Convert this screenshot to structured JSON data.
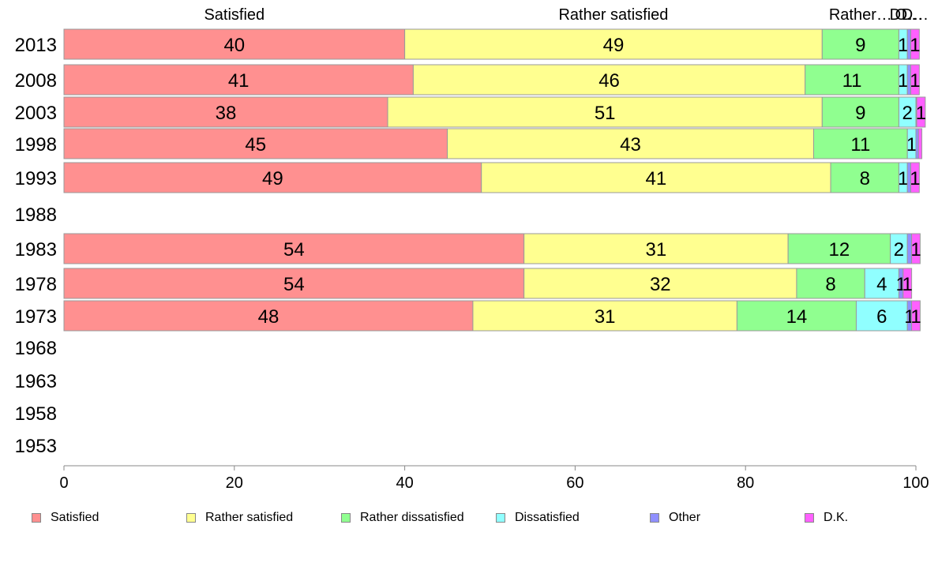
{
  "chart_data": {
    "type": "bar",
    "orientation": "horizontal",
    "stacked": true,
    "categories": [
      "2013",
      "2008",
      "2003",
      "1998",
      "1993",
      "1988",
      "1983",
      "1978",
      "1973",
      "1968",
      "1963",
      "1958",
      "1953"
    ],
    "series": [
      {
        "name": "Satisfied",
        "color": "#ff9090",
        "values": [
          40,
          41,
          38,
          45,
          49,
          null,
          54,
          54,
          48,
          null,
          null,
          null,
          null
        ]
      },
      {
        "name": "Rather satisfied",
        "color": "#ffff90",
        "values": [
          49,
          46,
          51,
          43,
          41,
          null,
          31,
          32,
          31,
          null,
          null,
          null,
          null
        ]
      },
      {
        "name": "Rather dissatisfied",
        "color": "#90ff90",
        "values": [
          9,
          11,
          9,
          11,
          8,
          null,
          12,
          8,
          14,
          null,
          null,
          null,
          null
        ]
      },
      {
        "name": "Dissatisfied",
        "color": "#90ffff",
        "values": [
          1,
          1,
          2,
          1,
          1,
          null,
          2,
          4,
          6,
          null,
          null,
          null,
          null
        ]
      },
      {
        "name": "Other",
        "color": "#9090ff",
        "values": [
          0.4,
          0.4,
          0.1,
          0.3,
          0.4,
          null,
          0.5,
          0.5,
          0.5,
          null,
          null,
          null,
          null
        ]
      },
      {
        "name": "D.K.",
        "color": "#ff60ff",
        "values": [
          1,
          1,
          1,
          0.4,
          1,
          null,
          1,
          1,
          1,
          null,
          null,
          null,
          null
        ]
      }
    ],
    "data_labels": [
      [
        "40",
        "49",
        "9",
        "1",
        "",
        "1"
      ],
      [
        "41",
        "46",
        "11",
        "1",
        "",
        "1"
      ],
      [
        "38",
        "51",
        "9",
        "2",
        "",
        "1"
      ],
      [
        "45",
        "43",
        "11",
        "1",
        "",
        ""
      ],
      [
        "49",
        "41",
        "8",
        "1",
        "",
        "1"
      ],
      [
        "",
        "",
        "",
        "",
        "",
        ""
      ],
      [
        "54",
        "31",
        "12",
        "2",
        "",
        "1"
      ],
      [
        "54",
        "32",
        "8",
        "4",
        "1",
        "1"
      ],
      [
        "48",
        "31",
        "14",
        "6",
        "1",
        "1"
      ],
      [
        "",
        "",
        "",
        "",
        "",
        ""
      ],
      [
        "",
        "",
        "",
        "",
        "",
        ""
      ],
      [
        "",
        "",
        "",
        "",
        "",
        ""
      ],
      [
        "",
        "",
        "",
        "",
        "",
        ""
      ]
    ],
    "top_labels": [
      "Satisfied",
      "Rather satisfied",
      "Rather…",
      "D…",
      "O…",
      "D…"
    ],
    "xlim": [
      0,
      100
    ],
    "xticks": [
      "0",
      "20",
      "40",
      "60",
      "80",
      "100"
    ],
    "xlabel": "",
    "ylabel": "",
    "legend_position": "bottom",
    "grid": false
  }
}
